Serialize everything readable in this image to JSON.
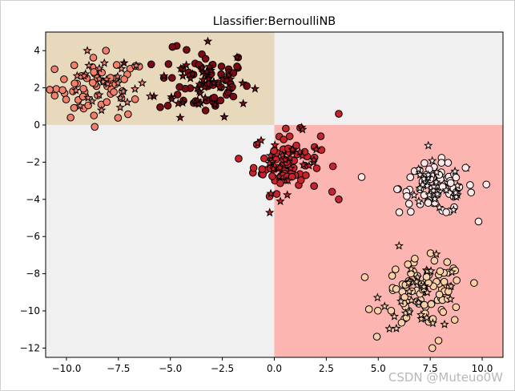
{
  "chart_data": {
    "type": "scatter",
    "title": "Llassifier:BernoulliNB",
    "xlabel": "",
    "ylabel": "",
    "xlim": [
      -11,
      11
    ],
    "ylim": [
      -12.5,
      5
    ],
    "grid": false,
    "x_ticks": [
      -10,
      -7.5,
      -5,
      -2.5,
      0,
      2.5,
      5,
      7.5,
      10
    ],
    "x_tick_labels": [
      "−10.0",
      "−7.5",
      "−5.0",
      "−2.5",
      "0.0",
      "2.5",
      "5.0",
      "7.5",
      "10.0"
    ],
    "y_ticks": [
      4,
      2,
      0,
      -2,
      -4,
      -6,
      -8,
      -10,
      -12
    ],
    "y_tick_labels": [
      "4",
      "2",
      "0",
      "−2",
      "−4",
      "−6",
      "−8",
      "−10",
      "−12"
    ],
    "decision_regions": [
      {
        "class": "top-left",
        "x_range": [
          -11,
          0
        ],
        "y_range": [
          0,
          5
        ],
        "color": "#e8d9bc"
      },
      {
        "class": "bottom-right",
        "x_range": [
          0,
          11
        ],
        "y_range": [
          -12.5,
          0
        ],
        "color": "#fcb5b0"
      },
      {
        "class": "top-right",
        "x_range": [
          0,
          11
        ],
        "y_range": [
          0,
          5
        ],
        "color": "#f0f0f0"
      },
      {
        "class": "bottom-left",
        "x_range": [
          -11,
          0
        ],
        "y_range": [
          -12.5,
          0
        ],
        "color": "#f0f0f0"
      }
    ],
    "clusters": [
      {
        "color": "#f4806a",
        "center": [
          -8.3,
          2.0
        ],
        "spread": [
          1.1,
          0.8
        ],
        "n_circles": 55,
        "n_stars": 28
      },
      {
        "color": "#7a0a14",
        "center": [
          -3.4,
          2.3
        ],
        "spread": [
          1.1,
          0.9
        ],
        "n_circles": 60,
        "n_stars": 45
      },
      {
        "color": "#c8222a",
        "center": [
          0.6,
          -2.0
        ],
        "spread": [
          0.8,
          0.8
        ],
        "n_circles": 70,
        "n_stars": 32
      },
      {
        "color": "#ffe9e9",
        "center": [
          7.8,
          -3.4
        ],
        "spread": [
          0.9,
          0.7
        ],
        "n_circles": 70,
        "n_stars": 32
      },
      {
        "color": "#fbd0a6",
        "center": [
          7.2,
          -9.1
        ],
        "spread": [
          1.0,
          0.9
        ],
        "n_circles": 85,
        "n_stars": 32
      }
    ],
    "extra_points": [
      {
        "x": 3.1,
        "y": 0.6,
        "color": "#c8222a",
        "marker": "circle"
      },
      {
        "x": 3.1,
        "y": -4.0,
        "color": "#c8222a",
        "marker": "circle"
      },
      {
        "x": 4.2,
        "y": -2.8,
        "color": "#ffe9e9",
        "marker": "circle"
      },
      {
        "x": -10.8,
        "y": 1.9,
        "color": "#f4806a",
        "marker": "circle"
      },
      {
        "x": -9.8,
        "y": 0.4,
        "color": "#f4806a",
        "marker": "circle"
      },
      {
        "x": -8.1,
        "y": 4.0,
        "color": "#f4806a",
        "marker": "circle"
      },
      {
        "x": -4.9,
        "y": 4.2,
        "color": "#7a0a14",
        "marker": "circle"
      },
      {
        "x": -3.2,
        "y": 4.5,
        "color": "#7a0a14",
        "marker": "star"
      },
      {
        "x": 7.6,
        "y": -12.0,
        "color": "#fbd0a6",
        "marker": "circle"
      },
      {
        "x": 7.9,
        "y": -11.6,
        "color": "#fbd0a6",
        "marker": "circle"
      },
      {
        "x": 7.7,
        "y": -7.3,
        "color": "#fbd0a6",
        "marker": "circle"
      },
      {
        "x": 6.0,
        "y": -6.5,
        "color": "#fbd0a6",
        "marker": "star"
      },
      {
        "x": 10.2,
        "y": -3.2,
        "color": "#ffe9e9",
        "marker": "circle"
      },
      {
        "x": 9.2,
        "y": -2.3,
        "color": "#ffe9e9",
        "marker": "circle"
      }
    ]
  },
  "watermark": "CSDN @Muteuo0W"
}
